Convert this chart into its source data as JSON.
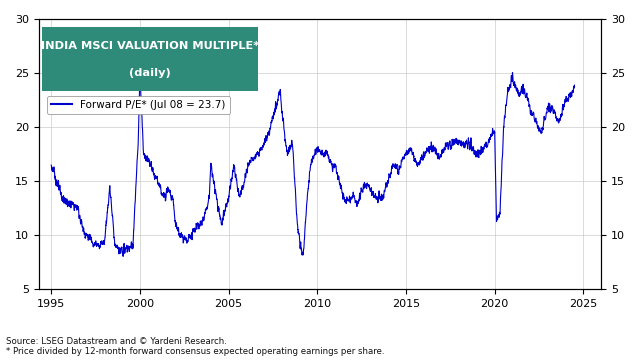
{
  "title_line1": "INDIA MSCI VALUATION MULTIPLE*",
  "title_line2": "(daily)",
  "title_bg_color": "#2e8b7a",
  "title_text_color": "#ffffff",
  "legend_label": "Forward P/E* (Jul 08 = 23.7)",
  "line_color": "#0000cc",
  "line_width": 0.8,
  "ylim": [
    5,
    30
  ],
  "yticks": [
    5,
    10,
    15,
    20,
    25,
    30
  ],
  "xlabel_years": [
    1995,
    2000,
    2005,
    2010,
    2015,
    2020,
    2025
  ],
  "xlim": [
    1994.3,
    2026.0
  ],
  "source_text1": "Source: LSEG Datastream and © Yardeni Research.",
  "source_text2": "* Price divided by 12-month forward consensus expected operating earnings per share.",
  "bg_color": "#ffffff",
  "grid_color": "#cccccc",
  "axis_label_color": "#000000",
  "control_years": [
    1995.0,
    1995.3,
    1995.6,
    1995.9,
    1996.2,
    1996.5,
    1996.8,
    1997.0,
    1997.3,
    1997.6,
    1998.0,
    1998.3,
    1998.6,
    1998.9,
    1999.0,
    1999.3,
    1999.6,
    1999.9,
    2000.0,
    2000.2,
    2000.5,
    2000.8,
    2001.0,
    2001.3,
    2001.6,
    2001.9,
    2002.0,
    2002.3,
    2002.6,
    2002.9,
    2003.0,
    2003.3,
    2003.6,
    2003.9,
    2004.0,
    2004.3,
    2004.6,
    2004.9,
    2005.0,
    2005.3,
    2005.6,
    2005.9,
    2006.0,
    2006.3,
    2006.6,
    2006.9,
    2007.0,
    2007.3,
    2007.6,
    2007.9,
    2008.0,
    2008.3,
    2008.6,
    2008.9,
    2009.0,
    2009.2,
    2009.4,
    2009.6,
    2009.8,
    2010.0,
    2010.3,
    2010.6,
    2010.9,
    2011.0,
    2011.3,
    2011.6,
    2011.9,
    2012.0,
    2012.3,
    2012.6,
    2012.9,
    2013.0,
    2013.3,
    2013.6,
    2013.9,
    2014.0,
    2014.3,
    2014.6,
    2014.9,
    2015.0,
    2015.3,
    2015.6,
    2015.9,
    2016.0,
    2016.3,
    2016.6,
    2016.9,
    2017.0,
    2017.3,
    2017.6,
    2017.9,
    2018.0,
    2018.3,
    2018.6,
    2018.9,
    2019.0,
    2019.3,
    2019.6,
    2019.9,
    2020.0,
    2020.1,
    2020.3,
    2020.5,
    2020.7,
    2020.9,
    2021.0,
    2021.3,
    2021.6,
    2021.9,
    2022.0,
    2022.3,
    2022.6,
    2022.9,
    2023.0,
    2023.3,
    2023.6,
    2023.9,
    2024.0,
    2024.3,
    2024.5
  ],
  "control_vals": [
    16.5,
    15.0,
    13.5,
    13.0,
    12.8,
    12.5,
    10.5,
    10.0,
    9.5,
    9.0,
    9.5,
    14.5,
    9.0,
    8.5,
    8.5,
    8.8,
    9.0,
    18.5,
    25.0,
    17.5,
    17.0,
    15.5,
    15.0,
    13.5,
    14.5,
    13.0,
    11.0,
    10.0,
    9.5,
    10.0,
    10.5,
    11.0,
    11.5,
    13.5,
    16.5,
    13.5,
    11.0,
    13.0,
    13.5,
    16.5,
    13.5,
    15.0,
    16.0,
    17.0,
    17.5,
    18.0,
    18.5,
    19.5,
    21.5,
    23.5,
    21.5,
    17.5,
    18.5,
    10.5,
    9.5,
    8.0,
    13.0,
    16.5,
    17.5,
    18.0,
    17.5,
    17.5,
    16.0,
    16.5,
    14.5,
    13.0,
    13.5,
    13.5,
    13.0,
    14.5,
    14.5,
    14.0,
    13.5,
    13.5,
    14.5,
    15.0,
    16.5,
    16.0,
    17.5,
    17.5,
    18.0,
    16.5,
    17.0,
    17.5,
    18.0,
    18.0,
    17.0,
    17.5,
    18.5,
    18.5,
    18.5,
    18.5,
    18.5,
    18.5,
    17.5,
    17.5,
    18.0,
    18.5,
    19.5,
    19.5,
    11.5,
    12.0,
    20.0,
    23.0,
    24.0,
    24.5,
    23.0,
    23.5,
    22.5,
    21.5,
    20.5,
    19.5,
    21.0,
    22.0,
    21.5,
    20.5,
    22.0,
    22.5,
    23.0,
    23.7
  ]
}
